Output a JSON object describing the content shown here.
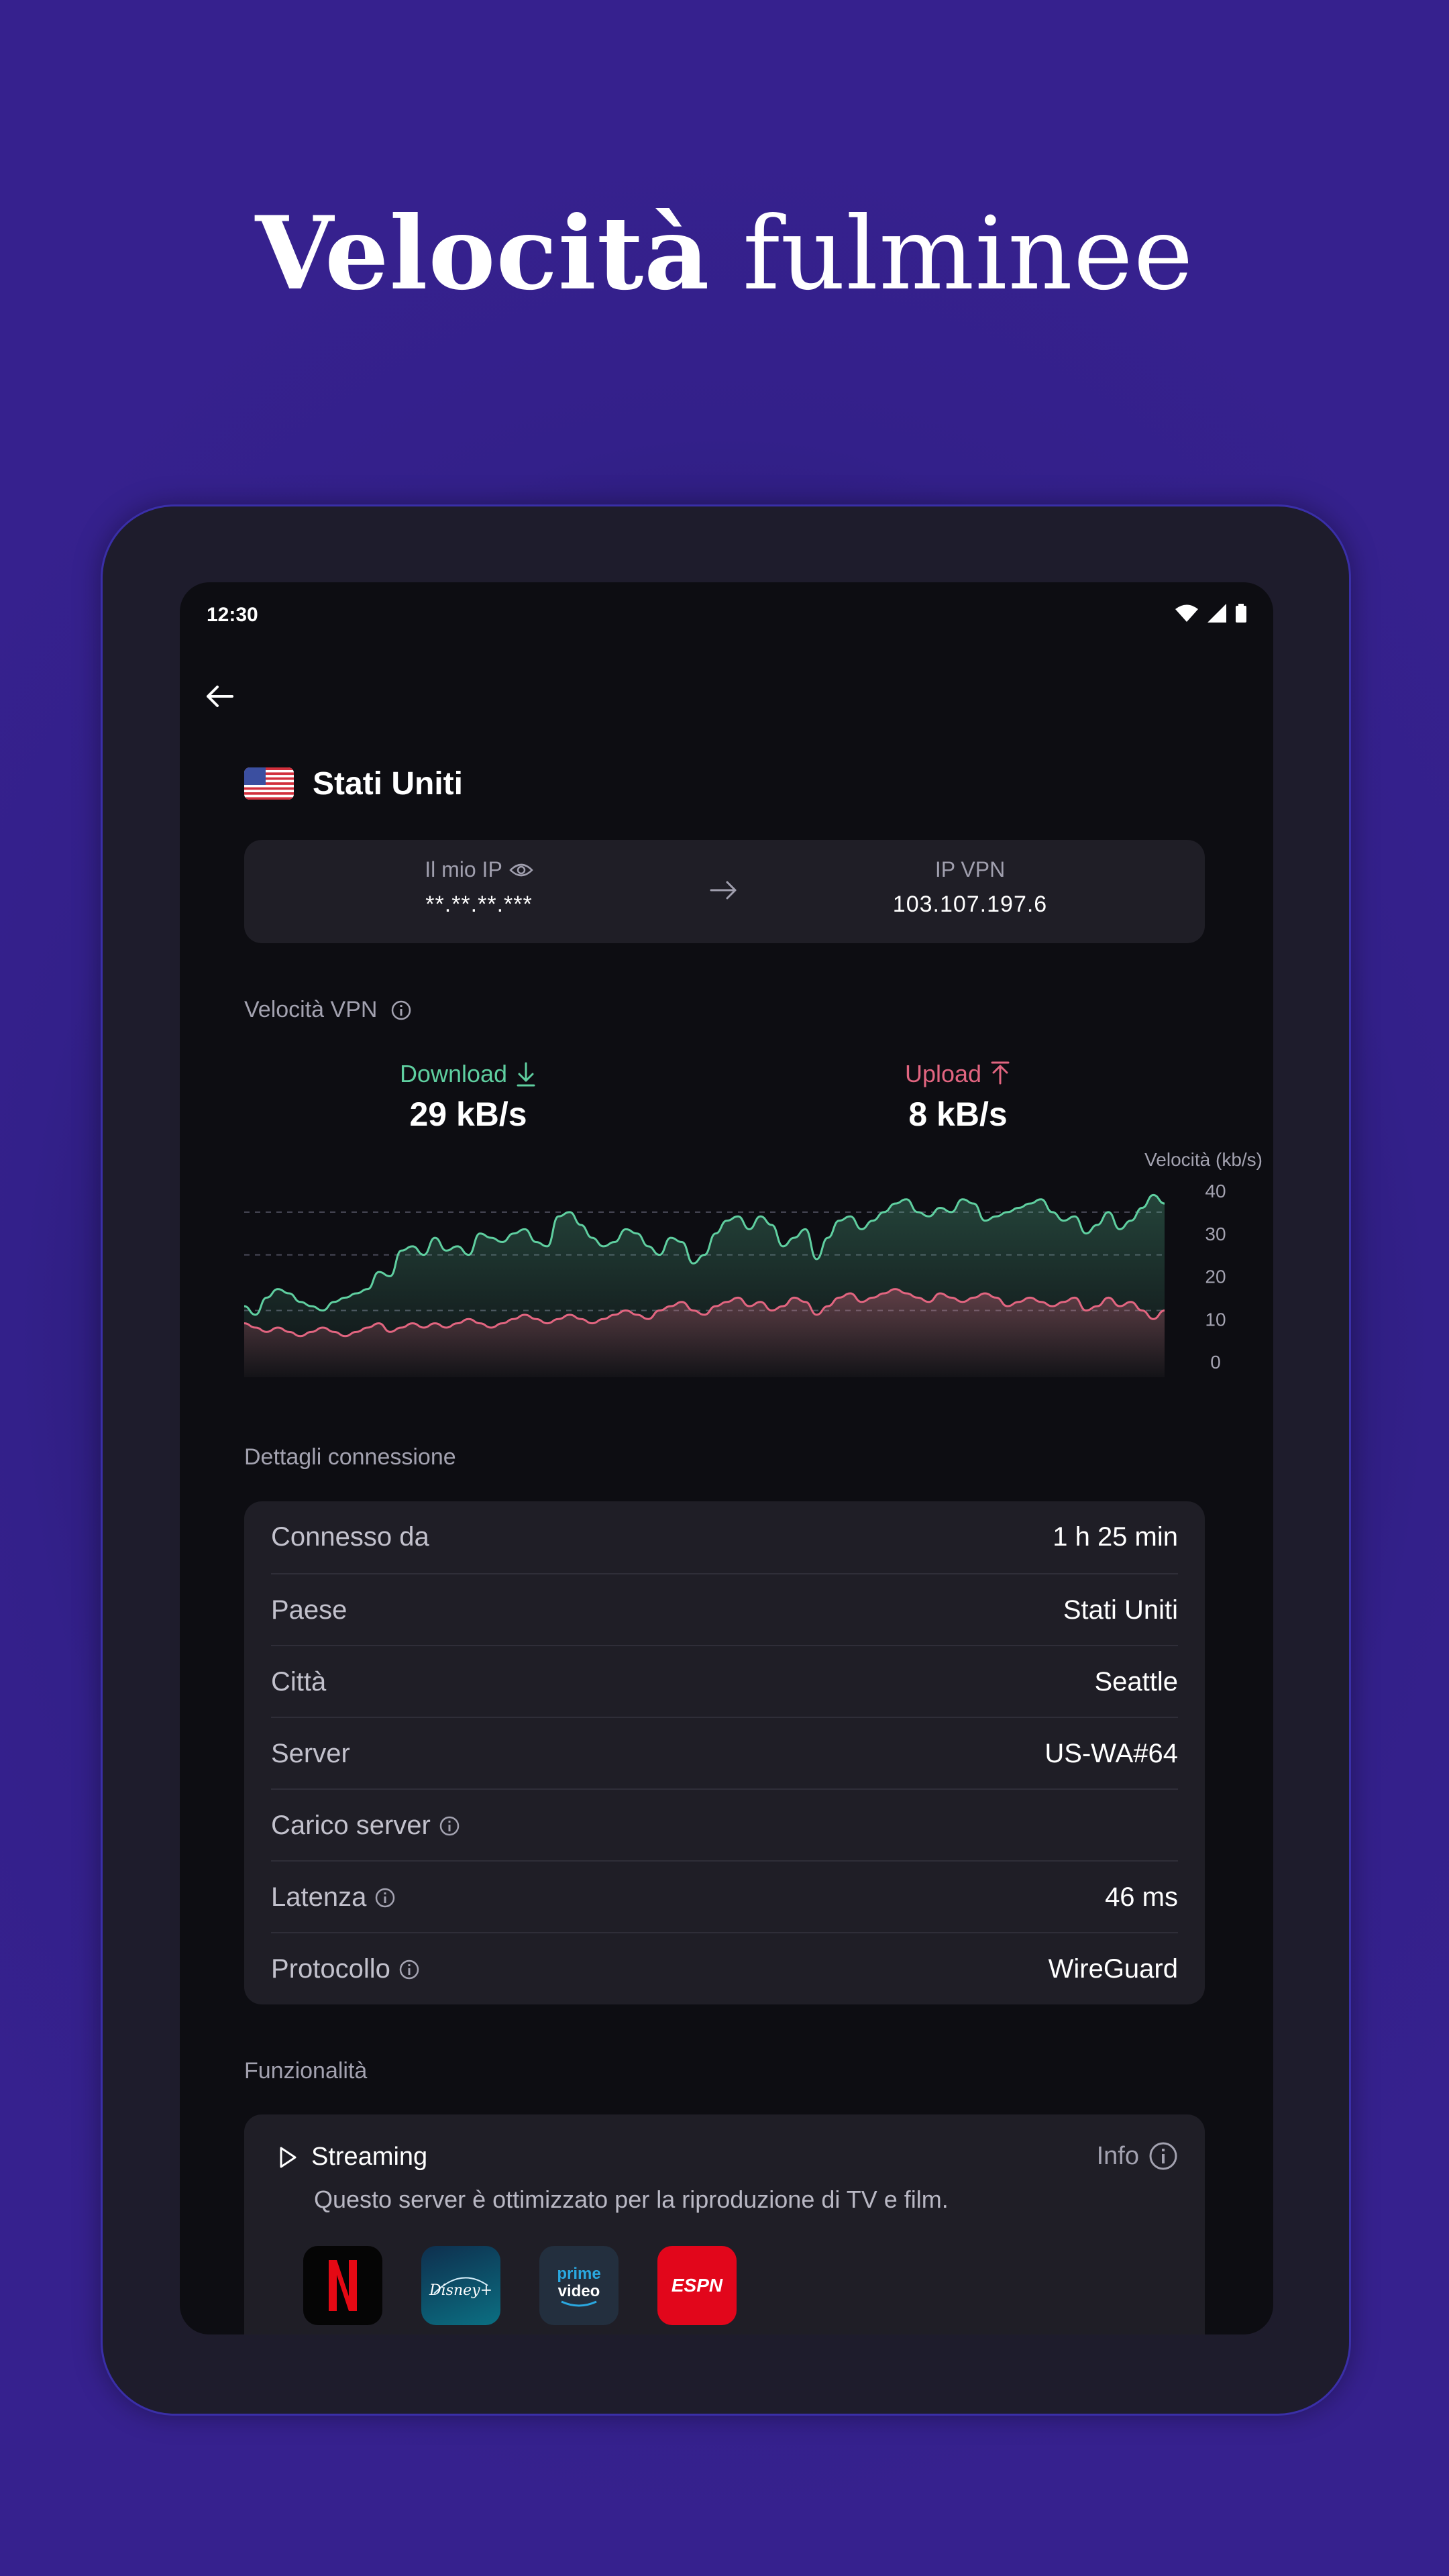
{
  "headline": {
    "bold": "Velocità",
    "light": "fulminee"
  },
  "status_bar": {
    "time": "12:30",
    "icons": [
      "wifi-icon",
      "signal-icon",
      "battery-icon"
    ]
  },
  "header": {
    "back_icon": "arrow-left-icon",
    "country": "Stati Uniti",
    "flag": "us-flag"
  },
  "ip_card": {
    "my_ip_label": "Il mio IP",
    "my_ip_value": "**.**.**.***",
    "vpn_ip_label": "IP VPN",
    "vpn_ip_value": "103.107.197.6"
  },
  "speed": {
    "title": "Velocità VPN",
    "download_label": "Download",
    "download_value": "29 kB/s",
    "upload_label": "Upload",
    "upload_value": "8 kB/s"
  },
  "chart_data": {
    "type": "area",
    "ylabel": "Velocità (kb/s)",
    "ylim": [
      0,
      40
    ],
    "yticks": [
      40,
      30,
      20,
      10,
      0
    ],
    "grid": "dashed at 12, 25, 35",
    "series": [
      {
        "name": "Download",
        "color": "#5fcfa0",
        "values": [
          13,
          11,
          15,
          17,
          16,
          14,
          13,
          12,
          14,
          15,
          16,
          17,
          21,
          20,
          26,
          27,
          25,
          29,
          26,
          27,
          25,
          30,
          29,
          28,
          30,
          31,
          28,
          27,
          34,
          35,
          32,
          29,
          27,
          28,
          31,
          30,
          27,
          25,
          29,
          28,
          23,
          25,
          30,
          33,
          34,
          31,
          34,
          32,
          27,
          29,
          31,
          24,
          29,
          33,
          34,
          31,
          33,
          35,
          37,
          38,
          35,
          34,
          36,
          35,
          38,
          37,
          33,
          34,
          35,
          36,
          37,
          38,
          35,
          33,
          34,
          30,
          32,
          35,
          31,
          33,
          36,
          39,
          37
        ]
      },
      {
        "name": "Upload",
        "color": "#e26580",
        "values": [
          9,
          8,
          7,
          8,
          7,
          6,
          7,
          8,
          7,
          6,
          7,
          8,
          9,
          7,
          8,
          9,
          8,
          9,
          8,
          9,
          10,
          9,
          8,
          9,
          10,
          11,
          10,
          9,
          10,
          11,
          10,
          9,
          10,
          11,
          12,
          11,
          10,
          12,
          13,
          14,
          12,
          11,
          13,
          14,
          15,
          13,
          14,
          12,
          13,
          15,
          14,
          11,
          13,
          15,
          16,
          14,
          15,
          16,
          17,
          16,
          15,
          14,
          16,
          15,
          14,
          15,
          16,
          15,
          13,
          14,
          15,
          14,
          13,
          14,
          15,
          12,
          13,
          15,
          13,
          14,
          12,
          10,
          12
        ]
      }
    ]
  },
  "details": {
    "title": "Dettagli connessione",
    "rows": [
      {
        "label": "Connesso da",
        "value": "1 h 25 min"
      },
      {
        "label": "Paese",
        "value": "Stati Uniti"
      },
      {
        "label": "Città",
        "value": "Seattle"
      },
      {
        "label": "Server",
        "value": "US-WA#64"
      },
      {
        "label": "Carico server",
        "value": ""
      },
      {
        "label": "Latenza",
        "value": "46 ms"
      },
      {
        "label": "Protocollo",
        "value": "WireGuard"
      }
    ]
  },
  "features": {
    "title": "Funzionalità",
    "streaming": {
      "name": "Streaming",
      "info_label": "Info",
      "description": "Questo server è ottimizzato per la riproduzione di TV e film.",
      "logos": [
        "netflix-logo",
        "disney-plus-logo",
        "prime-video-logo",
        "espn-logo"
      ]
    }
  },
  "colors": {
    "download": "#5fcfa0",
    "upload": "#e26580",
    "background": "#36218e",
    "screen": "#0d0d12",
    "card": "#1f1e26"
  }
}
